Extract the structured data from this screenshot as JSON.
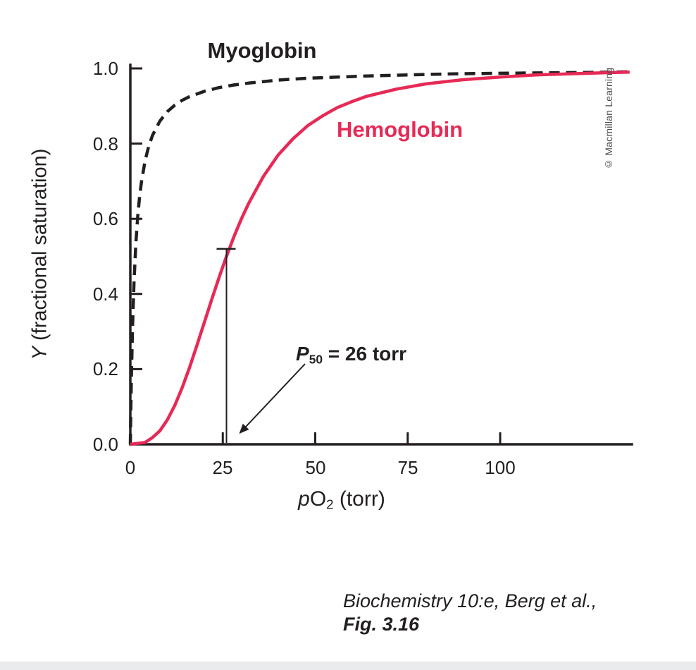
{
  "labels": {
    "myoglobin": "Myoglobin",
    "hemoglobin": "Hemoglobin",
    "p50_p": "P",
    "p50_sub": "50",
    "p50_rest": " = 26 torr",
    "xlabel_p": "p",
    "xlabel_o": "O",
    "xlabel_sub": "2",
    "xlabel_rest": " (torr)",
    "ylabel_y": "Y",
    "ylabel_rest": " (fractional saturation)"
  },
  "credit": "© Macmillan Learning",
  "caption": {
    "line1": "Biochemistry 10:e, Berg et al.,",
    "line2": "Fig. 3.16"
  },
  "chart_data": {
    "type": "line",
    "title": "",
    "xlabel": "pO2 (torr)",
    "ylabel": "Y (fractional saturation)",
    "xlim": [
      0,
      135
    ],
    "ylim": [
      0,
      1.0
    ],
    "grid": false,
    "axis_color": "#231f20",
    "x_ticks": [
      0,
      25,
      50,
      75,
      100
    ],
    "x_tick_labels": [
      "0",
      "25",
      "50",
      "75",
      "100"
    ],
    "y_ticks": [
      0,
      0.2,
      0.4,
      0.6,
      0.8,
      1.0
    ],
    "y_tick_labels": [
      "0.0",
      "0.2",
      "0.4",
      "0.6",
      "0.8",
      "1.0"
    ],
    "series": [
      {
        "name": "Myoglobin",
        "style": "dashed",
        "color": "#231f20",
        "points": [
          [
            0,
            0
          ],
          [
            0.15,
            0.103
          ],
          [
            0.3,
            0.188
          ],
          [
            0.6,
            0.316
          ],
          [
            1,
            0.435
          ],
          [
            1.5,
            0.536
          ],
          [
            2,
            0.606
          ],
          [
            2.5,
            0.658
          ],
          [
            3,
            0.698
          ],
          [
            4,
            0.755
          ],
          [
            5,
            0.794
          ],
          [
            6,
            0.822
          ],
          [
            8,
            0.86
          ],
          [
            10,
            0.885
          ],
          [
            12,
            0.902
          ],
          [
            14,
            0.915
          ],
          [
            16,
            0.925
          ],
          [
            20,
            0.939
          ],
          [
            24,
            0.949
          ],
          [
            28,
            0.956
          ],
          [
            32,
            0.961
          ],
          [
            36,
            0.965
          ],
          [
            40,
            0.969
          ],
          [
            48,
            0.974
          ],
          [
            56,
            0.977
          ],
          [
            64,
            0.98
          ],
          [
            72,
            0.982
          ],
          [
            80,
            0.984
          ],
          [
            90,
            0.986
          ],
          [
            100,
            0.987
          ],
          [
            110,
            0.988
          ],
          [
            120,
            0.989
          ],
          [
            130,
            0.99
          ],
          [
            135,
            0.991
          ]
        ]
      },
      {
        "name": "Hemoglobin",
        "style": "solid",
        "color": "#e62a56",
        "points": [
          [
            0,
            0
          ],
          [
            4,
            0.005
          ],
          [
            6,
            0.018
          ],
          [
            8,
            0.036
          ],
          [
            10,
            0.065
          ],
          [
            12,
            0.103
          ],
          [
            14,
            0.15
          ],
          [
            16,
            0.204
          ],
          [
            18,
            0.263
          ],
          [
            20,
            0.324
          ],
          [
            22,
            0.385
          ],
          [
            24,
            0.444
          ],
          [
            26,
            0.5
          ],
          [
            28,
            0.552
          ],
          [
            30,
            0.599
          ],
          [
            32,
            0.641
          ],
          [
            36,
            0.713
          ],
          [
            40,
            0.77
          ],
          [
            44,
            0.813
          ],
          [
            48,
            0.848
          ],
          [
            52,
            0.874
          ],
          [
            56,
            0.896
          ],
          [
            60,
            0.912
          ],
          [
            64,
            0.926
          ],
          [
            72,
            0.945
          ],
          [
            80,
            0.959
          ],
          [
            90,
            0.97
          ],
          [
            100,
            0.977
          ],
          [
            110,
            0.983
          ],
          [
            120,
            0.986
          ],
          [
            130,
            0.989
          ],
          [
            135,
            0.99
          ]
        ]
      }
    ],
    "annotations": {
      "p50_text": "P50 = 26 torr",
      "p50_x": 26,
      "marker_top": 0.52
    }
  }
}
